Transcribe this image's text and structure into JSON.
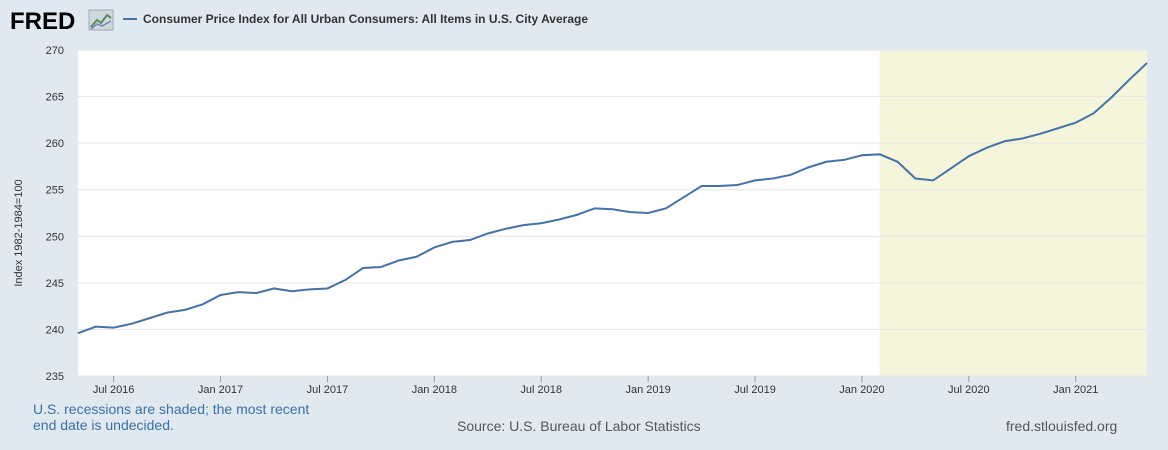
{
  "header": {
    "logo": "FRED",
    "logo_icon": "chart-line-icon",
    "legend_label": "Consumer Price Index for All Urban Consumers: All Items in U.S. City Average",
    "legend_color": "#4572a7"
  },
  "footer": {
    "note_line1": "U.S. recessions are shaded; the most recent",
    "note_line2": "end date is undecided.",
    "source": "Source: U.S. Bureau of Labor Statistics",
    "site": "fred.stlouisfed.org"
  },
  "chart_data": {
    "type": "line",
    "ylabel": "Index 1982-1984=100",
    "ylim": [
      235,
      270
    ],
    "yticks": [
      235,
      240,
      245,
      250,
      255,
      260,
      265,
      270
    ],
    "xticks": [
      {
        "date": "2016-07",
        "label": "Jul 2016"
      },
      {
        "date": "2017-01",
        "label": "Jan 2017"
      },
      {
        "date": "2017-07",
        "label": "Jul 2017"
      },
      {
        "date": "2018-01",
        "label": "Jan 2018"
      },
      {
        "date": "2018-07",
        "label": "Jul 2018"
      },
      {
        "date": "2019-01",
        "label": "Jan 2019"
      },
      {
        "date": "2019-07",
        "label": "Jul 2019"
      },
      {
        "date": "2020-01",
        "label": "Jan 2020"
      },
      {
        "date": "2020-07",
        "label": "Jul 2020"
      },
      {
        "date": "2021-01",
        "label": "Jan 2021"
      }
    ],
    "x_range": [
      "2016-05",
      "2021-05"
    ],
    "grid": true,
    "recession": {
      "start": "2020-02",
      "end": "2021-05",
      "color": "#f5f5dc"
    },
    "series": [
      {
        "color": "#4572a7",
        "x": [
          "2016-05",
          "2016-06",
          "2016-07",
          "2016-08",
          "2016-09",
          "2016-10",
          "2016-11",
          "2016-12",
          "2017-01",
          "2017-02",
          "2017-03",
          "2017-04",
          "2017-05",
          "2017-06",
          "2017-07",
          "2017-08",
          "2017-09",
          "2017-10",
          "2017-11",
          "2017-12",
          "2018-01",
          "2018-02",
          "2018-03",
          "2018-04",
          "2018-05",
          "2018-06",
          "2018-07",
          "2018-08",
          "2018-09",
          "2018-10",
          "2018-11",
          "2018-12",
          "2019-01",
          "2019-02",
          "2019-03",
          "2019-04",
          "2019-05",
          "2019-06",
          "2019-07",
          "2019-08",
          "2019-09",
          "2019-10",
          "2019-11",
          "2019-12",
          "2020-01",
          "2020-02",
          "2020-03",
          "2020-04",
          "2020-05",
          "2020-06",
          "2020-07",
          "2020-08",
          "2020-09",
          "2020-10",
          "2020-11",
          "2020-12",
          "2021-01",
          "2021-02",
          "2021-03",
          "2021-04",
          "2021-05"
        ],
        "y": [
          239.6,
          240.3,
          240.2,
          240.6,
          241.2,
          241.8,
          242.1,
          242.7,
          243.7,
          244.0,
          243.9,
          244.4,
          244.1,
          244.3,
          244.4,
          245.3,
          246.6,
          246.7,
          247.4,
          247.8,
          248.8,
          249.4,
          249.6,
          250.3,
          250.8,
          251.2,
          251.4,
          251.8,
          252.3,
          253.0,
          252.9,
          252.6,
          252.5,
          253.0,
          254.2,
          255.4,
          255.4,
          255.5,
          256.0,
          256.2,
          256.6,
          257.4,
          258.0,
          258.2,
          258.7,
          258.8,
          258.0,
          256.2,
          256.0,
          257.3,
          258.6,
          259.5,
          260.2,
          260.5,
          261.0,
          261.6,
          262.2,
          263.2,
          264.9,
          266.8,
          268.6
        ]
      }
    ]
  }
}
